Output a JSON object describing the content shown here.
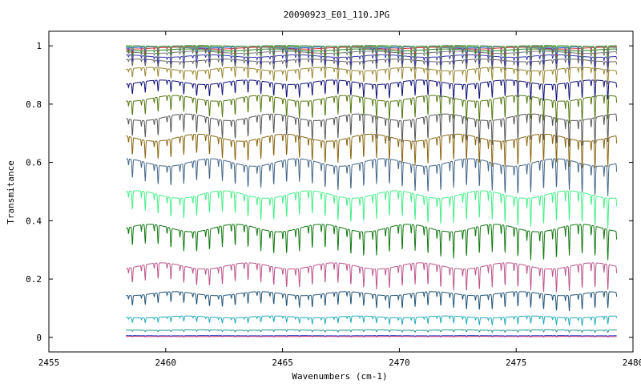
{
  "chart_data": {
    "type": "line",
    "title": "20090923_E01_110.JPG",
    "xlabel": "Wavenumbers (cm-1)",
    "ylabel": "Transmitance",
    "xlim": [
      2455,
      2480
    ],
    "ylim": [
      -0.05,
      1.05
    ],
    "x_data_range": [
      2458.3,
      2479.3
    ],
    "xticks": [
      2455,
      2460,
      2465,
      2470,
      2475,
      2480
    ],
    "xtick_labels": [
      "2455",
      "2460",
      "2465",
      "2470",
      "2475",
      "2480"
    ],
    "yticks": [
      0,
      0.2,
      0.4,
      0.6,
      0.8,
      1
    ],
    "ytick_labels": [
      "0",
      "0.2",
      "0.4",
      "0.6",
      "0.8",
      "1"
    ],
    "grid": false,
    "legend": "none",
    "absorption_line_spacing_cm1": 0.55,
    "series": [
      {
        "color": "#cc3366",
        "baseline": 0.003,
        "line_depth": 0.001
      },
      {
        "color": "#4455cc",
        "baseline": 0.006,
        "line_depth": 0.002
      },
      {
        "color": "#229988",
        "baseline": 0.025,
        "line_depth": 0.006
      },
      {
        "color": "#22aabb",
        "baseline": 0.07,
        "line_depth": 0.022
      },
      {
        "color": "#225577",
        "baseline": 0.15,
        "line_depth": 0.045
      },
      {
        "color": "#bb5588",
        "baseline": 0.245,
        "line_depth": 0.07
      },
      {
        "color": "#117711",
        "baseline": 0.375,
        "line_depth": 0.085
      },
      {
        "color": "#44ee88",
        "baseline": 0.49,
        "line_depth": 0.085
      },
      {
        "color": "#446688",
        "baseline": 0.6,
        "line_depth": 0.085
      },
      {
        "color": "#886611",
        "baseline": 0.685,
        "line_depth": 0.08
      },
      {
        "color": "#555555",
        "baseline": 0.755,
        "line_depth": 0.075
      },
      {
        "color": "#557711",
        "baseline": 0.82,
        "line_depth": 0.065
      },
      {
        "color": "#111177",
        "baseline": 0.875,
        "line_depth": 0.05
      },
      {
        "color": "#998833",
        "baseline": 0.92,
        "line_depth": 0.04
      },
      {
        "color": "#666666",
        "baseline": 0.95,
        "line_depth": 0.03
      },
      {
        "color": "#3333aa",
        "baseline": 0.965,
        "line_depth": 0.028
      },
      {
        "color": "#777777",
        "baseline": 0.978,
        "line_depth": 0.025
      },
      {
        "color": "#228822",
        "baseline": 0.986,
        "line_depth": 0.022
      },
      {
        "color": "#dd3333",
        "baseline": 0.992,
        "line_depth": 0.02
      },
      {
        "color": "#3355dd",
        "baseline": 0.995,
        "line_depth": 0.018
      },
      {
        "color": "#55bbbb",
        "baseline": 0.997,
        "line_depth": 0.015
      },
      {
        "color": "#999900",
        "baseline": 0.998,
        "line_depth": 0.012
      },
      {
        "color": "#aa44aa",
        "baseline": 0.999,
        "line_depth": 0.01
      },
      {
        "color": "#44aa44",
        "baseline": 1.0,
        "line_depth": 0.01
      }
    ]
  }
}
